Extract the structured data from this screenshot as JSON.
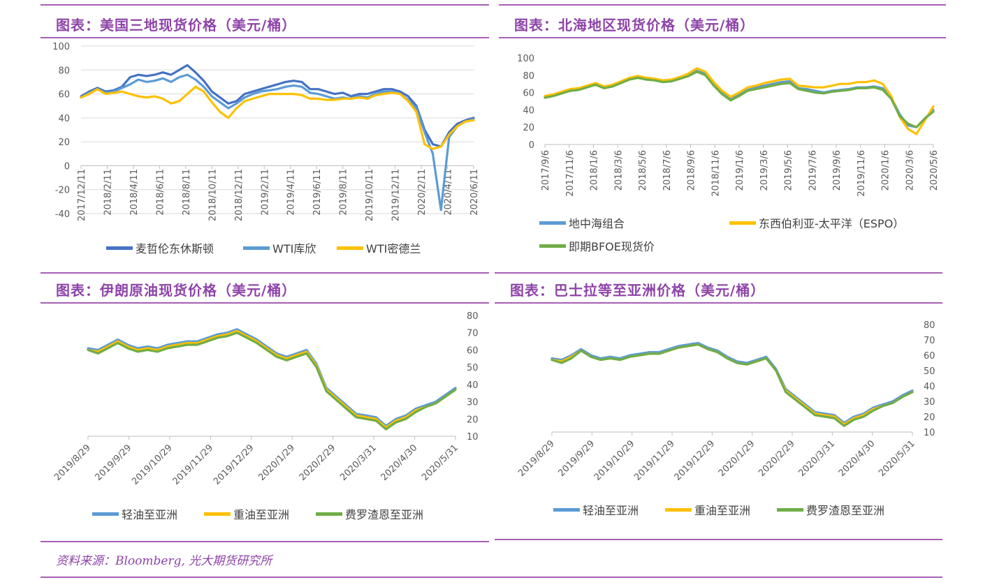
{
  "page": {
    "source_note": "资料来源：Bloomberg, 光大期货研究所"
  },
  "chart_data": [
    {
      "type": "line",
      "title": "图表：美国三地现货价格（美元/桶）",
      "ylim": [
        -40,
        100
      ],
      "yticks": [
        "100",
        "80",
        "60",
        "40",
        "20",
        "0",
        "-20",
        "-40"
      ],
      "xticks": [
        "2017/12/11",
        "2018/2/11",
        "2018/4/11",
        "2018/6/11",
        "2018/8/11",
        "2018/10/11",
        "2018/12/11",
        "2019/2/11",
        "2019/4/11",
        "2019/6/11",
        "2019/8/11",
        "2019/10/11",
        "2019/12/11",
        "2020/2/11",
        "2020/4/11",
        "2020/6/11"
      ],
      "grid": true,
      "legend_position": "bottom",
      "series": [
        {
          "name": "麦哲伦东休斯顿",
          "color": "#4472c4",
          "values": [
            58,
            62,
            65,
            62,
            63,
            66,
            74,
            76,
            75,
            76,
            78,
            76,
            80,
            84,
            78,
            71,
            62,
            57,
            52,
            54,
            60,
            62,
            64,
            66,
            68,
            70,
            71,
            70,
            64,
            64,
            62,
            60,
            61,
            58,
            60,
            60,
            62,
            64,
            64,
            62,
            58,
            50,
            30,
            18,
            16,
            28,
            35,
            38,
            40
          ]
        },
        {
          "name": "WTI库欣",
          "color": "#5b9bd5",
          "values": [
            57,
            61,
            64,
            61,
            62,
            65,
            68,
            72,
            70,
            71,
            73,
            70,
            74,
            76,
            72,
            66,
            58,
            53,
            48,
            52,
            57,
            60,
            62,
            63,
            64,
            66,
            67,
            66,
            61,
            60,
            58,
            56,
            57,
            56,
            58,
            57,
            60,
            62,
            62,
            60,
            55,
            48,
            28,
            10,
            -37,
            24,
            33,
            37,
            39
          ]
        },
        {
          "name": "WTI密德兰",
          "color": "#ffc000",
          "values": [
            57,
            60,
            64,
            60,
            61,
            62,
            60,
            58,
            57,
            58,
            56,
            52,
            54,
            60,
            66,
            62,
            53,
            45,
            40,
            48,
            54,
            56,
            58,
            60,
            60,
            60,
            60,
            59,
            56,
            56,
            55,
            55,
            56,
            56,
            57,
            56,
            59,
            60,
            61,
            60,
            54,
            45,
            18,
            14,
            16,
            26,
            33,
            37,
            38
          ]
        }
      ]
    },
    {
      "type": "line",
      "title": "图表：北海地区现货价格（美元/桶）",
      "ylim": [
        0,
        100
      ],
      "yticks": [
        "100",
        "80",
        "60",
        "40",
        "20",
        "0"
      ],
      "xticks": [
        "2017/9/6",
        "2017/11/6",
        "2018/1/6",
        "2018/3/6",
        "2018/5/6",
        "2018/7/6",
        "2018/9/6",
        "2018/11/6",
        "2019/1/6",
        "2019/3/6",
        "2019/5/6",
        "2019/7/6",
        "2019/9/6",
        "2019/11/6",
        "2020/1/6",
        "2020/3/6",
        "2020/5/6"
      ],
      "grid": false,
      "legend_position": "bottom",
      "series": [
        {
          "name": "地中海组合",
          "color": "#5b9bd5",
          "values": [
            55,
            57,
            60,
            63,
            64,
            67,
            70,
            66,
            68,
            72,
            76,
            78,
            76,
            75,
            73,
            74,
            77,
            80,
            85,
            82,
            70,
            60,
            53,
            58,
            63,
            66,
            68,
            70,
            72,
            73,
            65,
            64,
            62,
            60,
            62,
            63,
            64,
            66,
            66,
            67,
            65,
            55,
            35,
            22,
            20,
            30,
            40
          ]
        },
        {
          "name": "东西伯利亚-太平洋（ESPO）",
          "color": "#ffc000",
          "values": [
            56,
            58,
            61,
            64,
            65,
            68,
            71,
            67,
            69,
            73,
            77,
            79,
            77,
            76,
            74,
            75,
            78,
            82,
            88,
            84,
            72,
            62,
            55,
            60,
            66,
            68,
            71,
            73,
            75,
            76,
            68,
            67,
            66,
            66,
            68,
            70,
            70,
            72,
            72,
            74,
            70,
            56,
            32,
            18,
            12,
            28,
            44
          ]
        },
        {
          "name": "即期BFOE现货价",
          "color": "#70ad47",
          "values": [
            54,
            56,
            59,
            62,
            63,
            66,
            69,
            65,
            67,
            71,
            75,
            77,
            75,
            74,
            72,
            73,
            76,
            79,
            84,
            80,
            68,
            58,
            51,
            56,
            62,
            64,
            66,
            68,
            70,
            71,
            64,
            62,
            60,
            59,
            61,
            62,
            63,
            65,
            65,
            66,
            63,
            53,
            33,
            24,
            20,
            30,
            38
          ]
        }
      ]
    },
    {
      "type": "line",
      "title": "图表：伊朗原油现货价格（美元/桶）",
      "ylim": [
        10,
        80
      ],
      "yticks": [
        "80",
        "70",
        "60",
        "50",
        "40",
        "30",
        "20",
        "10"
      ],
      "xticks": [
        "2019/8/29",
        "2019/9/29",
        "2019/10/29",
        "2019/11/29",
        "2019/12/29",
        "2020/1/29",
        "2020/2/29",
        "2020/3/31",
        "2020/4/30",
        "2020/5/31"
      ],
      "grid": false,
      "legend_position": "bottom",
      "series": [
        {
          "name": "轻油至亚洲",
          "color": "#5b9bd5",
          "values": [
            61,
            60,
            63,
            66,
            63,
            61,
            62,
            61,
            63,
            64,
            65,
            65,
            67,
            69,
            70,
            72,
            69,
            66,
            62,
            58,
            56,
            58,
            60,
            52,
            38,
            33,
            28,
            23,
            22,
            21,
            16,
            20,
            22,
            26,
            28,
            30,
            34,
            38
          ]
        },
        {
          "name": "重油至亚洲",
          "color": "#ffc000",
          "values": [
            60,
            59,
            62,
            65,
            62,
            60,
            61,
            60,
            62,
            63,
            64,
            64,
            66,
            68,
            69,
            71,
            68,
            65,
            61,
            57,
            55,
            57,
            59,
            51,
            37,
            32,
            27,
            22,
            21,
            20,
            15,
            19,
            21,
            25,
            27,
            29,
            33,
            37
          ]
        },
        {
          "name": "费罗渣恩至亚洲",
          "color": "#70ad47",
          "values": [
            60,
            58,
            61,
            64,
            61,
            59,
            60,
            59,
            61,
            62,
            63,
            63,
            65,
            67,
            68,
            70,
            67,
            64,
            60,
            56,
            54,
            56,
            58,
            50,
            36,
            31,
            26,
            21,
            20,
            19,
            14,
            18,
            20,
            24,
            27,
            29,
            33,
            37
          ]
        }
      ]
    },
    {
      "type": "line",
      "title": "图表：巴士拉等至亚洲价格（美元/桶）",
      "ylim": [
        10,
        80
      ],
      "yticks": [
        "80",
        "70",
        "60",
        "50",
        "40",
        "30",
        "20",
        "10"
      ],
      "xticks": [
        "2019/8/29",
        "2019/9/29",
        "2019/10/29",
        "2019/11/29",
        "2019/12/29",
        "2020/1/29",
        "2020/2/29",
        "2020/3/31",
        "2020/4/30",
        "2020/5/31"
      ],
      "grid": false,
      "legend_position": "bottom",
      "series": [
        {
          "name": "轻油至亚洲",
          "color": "#5b9bd5",
          "values": [
            58,
            57,
            60,
            64,
            60,
            58,
            59,
            58,
            60,
            61,
            62,
            62,
            64,
            66,
            67,
            68,
            65,
            63,
            59,
            56,
            55,
            57,
            59,
            51,
            38,
            33,
            28,
            23,
            22,
            21,
            16,
            20,
            22,
            26,
            28,
            30,
            34,
            37
          ]
        },
        {
          "name": "重油至亚洲",
          "color": "#ffc000",
          "values": [
            57,
            56,
            59,
            63,
            59,
            57,
            58,
            57,
            59,
            60,
            61,
            61,
            63,
            65,
            66,
            67,
            64,
            62,
            58,
            55,
            54,
            56,
            58,
            50,
            37,
            32,
            27,
            22,
            21,
            20,
            15,
            19,
            21,
            25,
            27,
            29,
            33,
            36
          ]
        },
        {
          "name": "费罗渣恩至亚洲",
          "color": "#70ad47",
          "values": [
            57,
            55,
            58,
            63,
            59,
            57,
            58,
            57,
            59,
            60,
            61,
            61,
            63,
            65,
            66,
            67,
            64,
            62,
            58,
            55,
            54,
            56,
            58,
            50,
            36,
            31,
            26,
            21,
            20,
            19,
            14,
            18,
            20,
            24,
            27,
            29,
            33,
            36
          ]
        }
      ]
    }
  ]
}
